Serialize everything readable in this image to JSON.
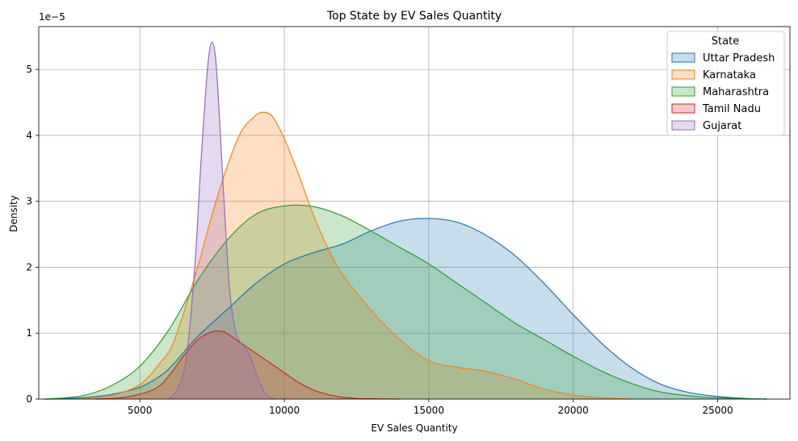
{
  "chart_data": {
    "type": "area",
    "title": "Top State by EV Sales Quantity",
    "xlabel": "EV Sales Quantity",
    "ylabel": "Density",
    "y_scale_label": "1e−5",
    "xlim": [
      1500,
      27500
    ],
    "ylim": [
      0,
      5.65
    ],
    "x_ticks": [
      5000,
      10000,
      15000,
      20000,
      25000
    ],
    "x_tick_labels": [
      "5000",
      "10000",
      "15000",
      "20000",
      "25000"
    ],
    "y_ticks": [
      0,
      1,
      2,
      3,
      4,
      5
    ],
    "y_tick_labels": [
      "0",
      "1",
      "2",
      "3",
      "4",
      "5"
    ],
    "grid": true,
    "legend_title": "State",
    "legend_position": "top-right",
    "series": [
      {
        "name": "Uttar Pradesh",
        "color": "#1f77b4",
        "x": [
          1700,
          3000,
          4000,
          5000,
          5700,
          6200,
          7000,
          8000,
          9000,
          10000,
          11000,
          12000,
          13000,
          14000,
          15000,
          16000,
          17000,
          18000,
          19000,
          20000,
          21000,
          22000,
          23000,
          24000,
          25000,
          26000,
          26700
        ],
        "y": [
          0,
          0.02,
          0.07,
          0.18,
          0.35,
          0.55,
          0.95,
          1.35,
          1.75,
          2.05,
          2.22,
          2.35,
          2.55,
          2.7,
          2.74,
          2.68,
          2.48,
          2.17,
          1.75,
          1.28,
          0.84,
          0.48,
          0.23,
          0.1,
          0.04,
          0.01,
          0
        ]
      },
      {
        "name": "Karnataka",
        "color": "#ff7f0e",
        "x": [
          3000,
          4000,
          5000,
          5700,
          6200,
          7000,
          7500,
          8000,
          8500,
          9000,
          9300,
          9600,
          10000,
          10500,
          11000,
          11500,
          12000,
          13000,
          14000,
          15000,
          16000,
          17000,
          18000,
          19000,
          20000,
          21000,
          22000
        ],
        "y": [
          0,
          0.05,
          0.22,
          0.55,
          0.9,
          2.0,
          2.8,
          3.5,
          4.05,
          4.3,
          4.35,
          4.28,
          3.95,
          3.4,
          2.8,
          2.3,
          1.9,
          1.35,
          0.9,
          0.58,
          0.48,
          0.42,
          0.3,
          0.15,
          0.06,
          0.02,
          0
        ]
      },
      {
        "name": "Maharashtra",
        "color": "#2ca02c",
        "x": [
          1700,
          3000,
          4000,
          5000,
          6000,
          7000,
          8000,
          9000,
          10000,
          11000,
          12000,
          13000,
          14000,
          15000,
          16000,
          17000,
          18000,
          19000,
          20000,
          21000,
          22000,
          23000,
          24000,
          25000,
          26000,
          26700
        ],
        "y": [
          0,
          0.05,
          0.2,
          0.5,
          1.05,
          1.8,
          2.4,
          2.8,
          2.93,
          2.92,
          2.78,
          2.55,
          2.3,
          2.05,
          1.75,
          1.45,
          1.15,
          0.9,
          0.65,
          0.42,
          0.24,
          0.11,
          0.05,
          0.02,
          0.005,
          0
        ]
      },
      {
        "name": "Tamil Nadu",
        "color": "#d62728",
        "x": [
          3500,
          4500,
          5500,
          6000,
          6500,
          7000,
          7500,
          7800,
          8000,
          8500,
          9000,
          9500,
          10000,
          10500,
          11000,
          11500,
          12000,
          12500,
          13000,
          14000
        ],
        "y": [
          0,
          0.03,
          0.15,
          0.35,
          0.65,
          0.9,
          1.02,
          1.03,
          1.0,
          0.85,
          0.7,
          0.55,
          0.4,
          0.25,
          0.14,
          0.07,
          0.03,
          0.01,
          0.005,
          0
        ]
      },
      {
        "name": "Gujarat",
        "color": "#9467bd",
        "x": [
          6000,
          6300,
          6600,
          6900,
          7100,
          7300,
          7400,
          7500,
          7600,
          7700,
          7900,
          8100,
          8300,
          8500,
          8700,
          8900,
          9100,
          9300,
          9500,
          9700
        ],
        "y": [
          0,
          0.15,
          0.6,
          2.0,
          3.5,
          4.8,
          5.25,
          5.42,
          5.25,
          4.7,
          3.1,
          1.7,
          1.05,
          0.85,
          0.75,
          0.55,
          0.3,
          0.12,
          0.03,
          0
        ]
      }
    ]
  }
}
